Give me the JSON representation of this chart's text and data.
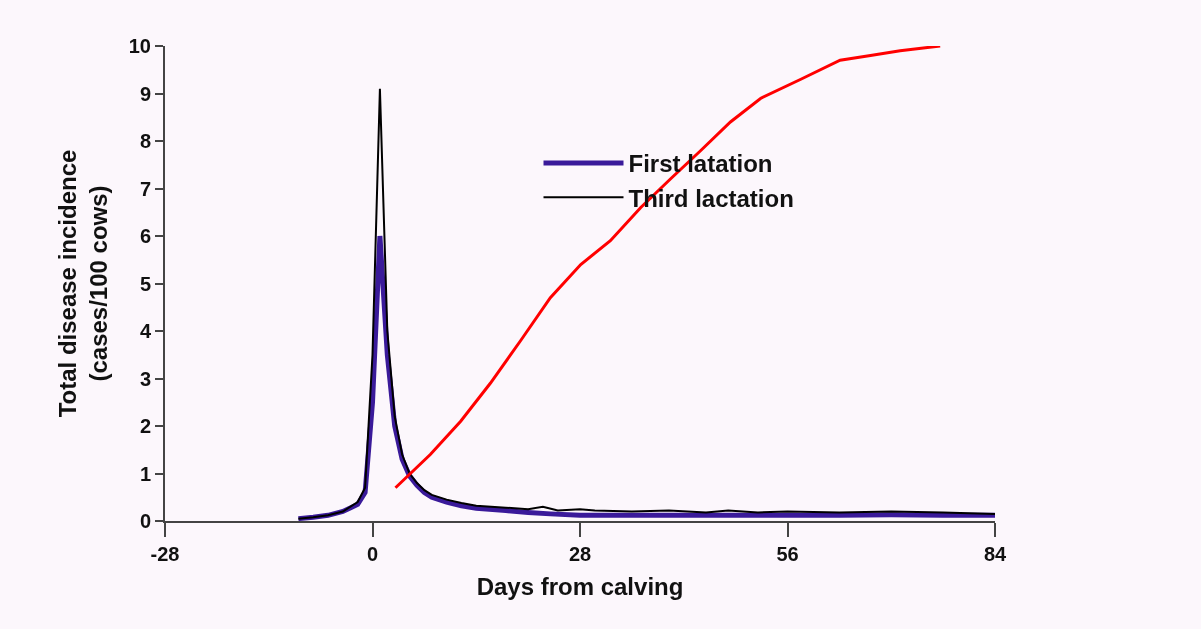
{
  "chart_data": {
    "type": "line",
    "xlabel": "Days from calving",
    "ylabel": "Total disease incidence\n(cases/100 cows)",
    "xlim": [
      -28,
      84
    ],
    "xticks": [
      -28,
      0,
      28,
      56,
      84
    ],
    "ylim": [
      0,
      10
    ],
    "yticks": [
      0,
      1,
      2,
      3,
      4,
      5,
      6,
      7,
      8,
      9,
      10
    ],
    "grid": false,
    "legend": "top right",
    "marker": "none",
    "line_style": "solid",
    "series": [
      {
        "name": "First latation",
        "color": "#3a1a9a",
        "x": [
          -10,
          -8,
          -6,
          -4,
          -2,
          -1,
          0,
          1,
          2,
          3,
          4,
          5,
          6,
          7,
          8,
          10,
          12,
          14,
          18,
          21,
          24,
          28,
          35,
          42,
          49,
          56,
          63,
          70,
          77,
          84
        ],
        "values": [
          0.05,
          0.08,
          0.12,
          0.2,
          0.35,
          0.6,
          2.5,
          6.0,
          3.5,
          2.0,
          1.3,
          0.95,
          0.75,
          0.6,
          0.5,
          0.4,
          0.32,
          0.27,
          0.22,
          0.18,
          0.15,
          0.12,
          0.12,
          0.12,
          0.12,
          0.12,
          0.12,
          0.13,
          0.12,
          0.12
        ]
      },
      {
        "name": "Third lactation",
        "color": "#000000",
        "x": [
          -10,
          -8,
          -6,
          -4,
          -2,
          -1,
          0,
          1,
          2,
          3,
          4,
          5,
          6,
          7,
          8,
          10,
          12,
          14,
          16,
          18,
          21,
          23,
          25,
          28,
          30,
          35,
          40,
          45,
          48,
          52,
          56,
          63,
          70,
          77,
          84
        ],
        "values": [
          0.05,
          0.08,
          0.12,
          0.2,
          0.4,
          0.7,
          3.5,
          9.1,
          4.0,
          2.2,
          1.4,
          1.0,
          0.8,
          0.65,
          0.55,
          0.45,
          0.38,
          0.32,
          0.3,
          0.28,
          0.25,
          0.3,
          0.22,
          0.25,
          0.22,
          0.2,
          0.22,
          0.18,
          0.22,
          0.18,
          0.2,
          0.18,
          0.2,
          0.18,
          0.15
        ]
      },
      {
        "color": "#ff0000",
        "x": [
          3.1,
          7.8,
          11.9,
          15.9,
          20.0,
          24.0,
          28.1,
          32.1,
          36.2,
          40.2,
          44.3,
          48.3,
          52.4,
          57.8,
          63.1,
          67.2,
          71.2,
          76.6
        ],
        "values": [
          0.7,
          1.4,
          2.1,
          2.9,
          3.8,
          4.7,
          5.4,
          5.9,
          6.6,
          7.2,
          7.8,
          8.4,
          8.9,
          9.3,
          9.7,
          9.8,
          9.9,
          10.0
        ]
      }
    ]
  }
}
